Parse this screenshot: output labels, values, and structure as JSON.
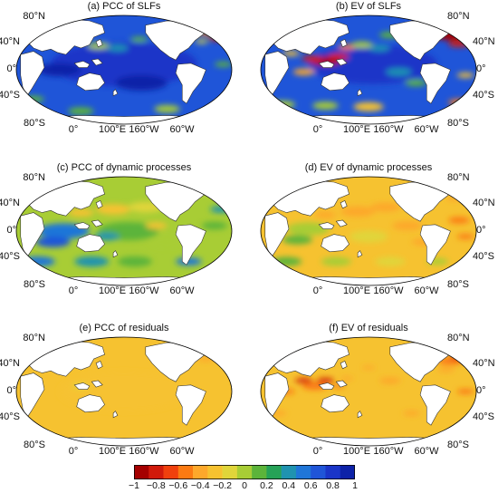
{
  "panels": [
    {
      "title": "(a) PCC of SLFs",
      "scheme": "pcc_slf"
    },
    {
      "title": "(b) EV of SLFs",
      "scheme": "ev_slf"
    },
    {
      "title": "(c) PCC of dynamic processes",
      "scheme": "pcc_dyn"
    },
    {
      "title": "(d) EV of dynamic processes",
      "scheme": "ev_dyn"
    },
    {
      "title": "(e) PCC of residuals",
      "scheme": "pcc_res"
    },
    {
      "title": "(f) EV of residuals",
      "scheme": "ev_res"
    }
  ],
  "axes": {
    "lat_labels": [
      "80°N",
      "40°N",
      "0°",
      "40°S",
      "80°S"
    ],
    "lon_labels": [
      "0°",
      "100°E",
      "160°W",
      "60°W"
    ]
  },
  "colorbar": {
    "ticks": [
      "−1",
      "−0.8",
      "−0.6",
      "−0.4",
      "−0.2",
      "0",
      "0.2",
      "0.4",
      "0.6",
      "0.8",
      "1"
    ],
    "colors": [
      "#a50000",
      "#d11a0b",
      "#f0400d",
      "#fb7a12",
      "#fda82b",
      "#f6c230",
      "#e0d53a",
      "#a8cd35",
      "#5cb43a",
      "#26a257",
      "#1f93b0",
      "#1f76d8",
      "#1f55d8",
      "#1a35c8",
      "#0d22a8"
    ]
  }
}
